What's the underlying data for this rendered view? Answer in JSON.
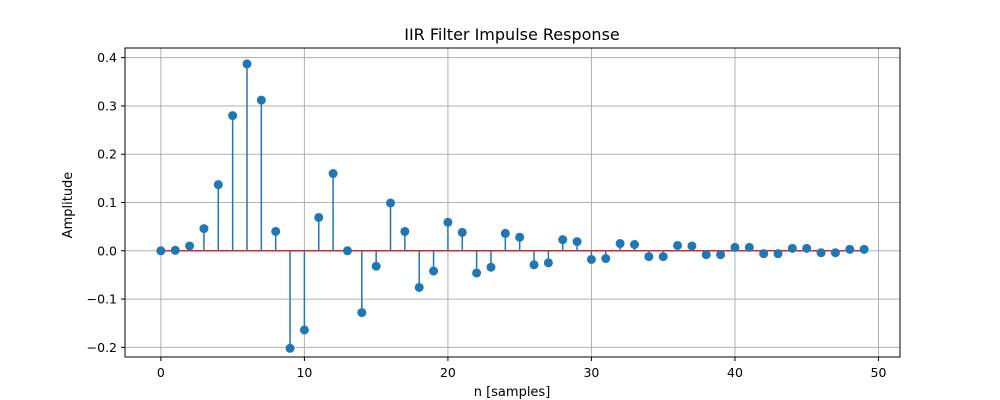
{
  "chart_data": {
    "type": "stem",
    "title": "IIR Filter Impulse Response",
    "xlabel": "n [samples]",
    "ylabel": "Amplitude",
    "xlim": [
      -2.5,
      51.5
    ],
    "ylim": [
      -0.22,
      0.42
    ],
    "xticks": [
      0,
      10,
      20,
      30,
      40,
      50
    ],
    "xtick_labels": [
      "0",
      "10",
      "20",
      "30",
      "40",
      "50"
    ],
    "yticks": [
      -0.2,
      -0.1,
      0.0,
      0.1,
      0.2,
      0.3,
      0.4
    ],
    "ytick_labels": [
      "−0.2",
      "−0.1",
      "0.0",
      "0.1",
      "0.2",
      "0.3",
      "0.4"
    ],
    "grid": true,
    "color": "#1f77b4",
    "series": [
      {
        "x": [
          0,
          1,
          2,
          3,
          4,
          5,
          6,
          7,
          8,
          9,
          10,
          11,
          12,
          13,
          14,
          15,
          16,
          17,
          18,
          19,
          20,
          21,
          22,
          23,
          24,
          25,
          26,
          27,
          28,
          29,
          30,
          31,
          32,
          33,
          34,
          35,
          36,
          37,
          38,
          39,
          40,
          41,
          42,
          43,
          44,
          45,
          46,
          47,
          48,
          49
        ],
        "values": [
          0.0,
          0.001,
          0.01,
          0.046,
          0.137,
          0.28,
          0.387,
          0.312,
          0.04,
          -0.202,
          -0.164,
          0.069,
          0.16,
          0.0,
          -0.128,
          -0.032,
          0.099,
          0.04,
          -0.076,
          -0.042,
          0.059,
          0.038,
          -0.046,
          -0.034,
          0.036,
          0.028,
          -0.029,
          -0.025,
          0.023,
          0.019,
          -0.018,
          -0.016,
          0.015,
          0.013,
          -0.012,
          -0.012,
          0.011,
          0.01,
          -0.008,
          -0.008,
          0.007,
          0.007,
          -0.006,
          -0.006,
          0.005,
          0.005,
          -0.004,
          -0.004,
          0.003,
          0.003
        ]
      }
    ]
  }
}
